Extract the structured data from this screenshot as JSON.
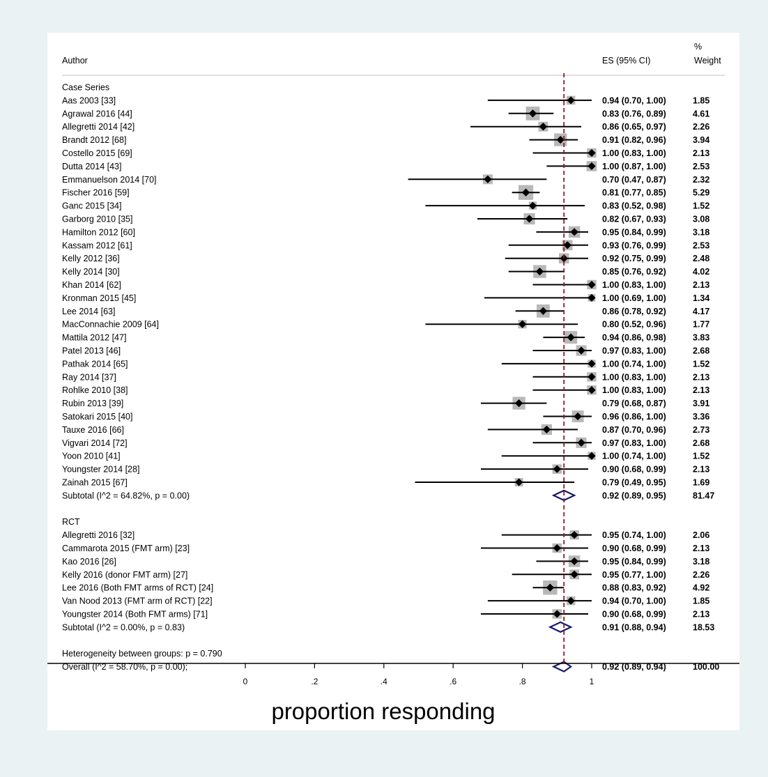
{
  "chart_data": {
    "type": "forest",
    "title": "",
    "xlabel": "proportion responding",
    "xlim": [
      0,
      1
    ],
    "x_ticks": [
      "0",
      ".2",
      ".4",
      ".6",
      ".8",
      "1"
    ],
    "x_tick_values": [
      0,
      0.2,
      0.4,
      0.6,
      0.8,
      1
    ],
    "overall_line": 0.92,
    "columns": {
      "author": "Author",
      "es": "ES (95% CI)",
      "weight_line1": "%",
      "weight_line2": "Weight"
    },
    "groups": [
      {
        "name": "Case Series",
        "studies": [
          {
            "label": "Aas 2003 [33]",
            "es": 0.94,
            "lo": 0.7,
            "hi": 1.0,
            "es_text": "0.94 (0.70, 1.00)",
            "weight": "1.85"
          },
          {
            "label": "Agrawal 2016 [44]",
            "es": 0.83,
            "lo": 0.76,
            "hi": 0.89,
            "es_text": "0.83 (0.76, 0.89)",
            "weight": "4.61"
          },
          {
            "label": "Allegretti 2014 [42]",
            "es": 0.86,
            "lo": 0.65,
            "hi": 0.97,
            "es_text": "0.86 (0.65, 0.97)",
            "weight": "2.26"
          },
          {
            "label": "Brandt 2012 [68]",
            "es": 0.91,
            "lo": 0.82,
            "hi": 0.96,
            "es_text": "0.91 (0.82, 0.96)",
            "weight": "3.94"
          },
          {
            "label": "Costello 2015 [69]",
            "es": 1.0,
            "lo": 0.83,
            "hi": 1.0,
            "es_text": "1.00 (0.83, 1.00)",
            "weight": "2.13"
          },
          {
            "label": "Dutta 2014 [43]",
            "es": 1.0,
            "lo": 0.87,
            "hi": 1.0,
            "es_text": "1.00 (0.87, 1.00)",
            "weight": "2.53"
          },
          {
            "label": "Emmanuelson 2014 [70]",
            "es": 0.7,
            "lo": 0.47,
            "hi": 0.87,
            "es_text": "0.70 (0.47, 0.87)",
            "weight": "2.32"
          },
          {
            "label": "Fischer 2016 [59]",
            "es": 0.81,
            "lo": 0.77,
            "hi": 0.85,
            "es_text": "0.81 (0.77, 0.85)",
            "weight": "5.29"
          },
          {
            "label": "Ganc 2015 [34]",
            "es": 0.83,
            "lo": 0.52,
            "hi": 0.98,
            "es_text": "0.83 (0.52, 0.98)",
            "weight": "1.52"
          },
          {
            "label": "Garborg 2010 [35]",
            "es": 0.82,
            "lo": 0.67,
            "hi": 0.93,
            "es_text": "0.82 (0.67, 0.93)",
            "weight": "3.08"
          },
          {
            "label": "Hamilton 2012 [60]",
            "es": 0.95,
            "lo": 0.84,
            "hi": 0.99,
            "es_text": "0.95 (0.84, 0.99)",
            "weight": "3.18"
          },
          {
            "label": "Kassam 2012 [61]",
            "es": 0.93,
            "lo": 0.76,
            "hi": 0.99,
            "es_text": "0.93 (0.76, 0.99)",
            "weight": "2.53"
          },
          {
            "label": "Kelly 2012 [36]",
            "es": 0.92,
            "lo": 0.75,
            "hi": 0.99,
            "es_text": "0.92 (0.75, 0.99)",
            "weight": "2.48"
          },
          {
            "label": "Kelly 2014 [30]",
            "es": 0.85,
            "lo": 0.76,
            "hi": 0.92,
            "es_text": "0.85 (0.76, 0.92)",
            "weight": "4.02"
          },
          {
            "label": "Khan 2014 [62]",
            "es": 1.0,
            "lo": 0.83,
            "hi": 1.0,
            "es_text": "1.00 (0.83, 1.00)",
            "weight": "2.13"
          },
          {
            "label": "Kronman 2015 [45]",
            "es": 1.0,
            "lo": 0.69,
            "hi": 1.0,
            "es_text": "1.00 (0.69, 1.00)",
            "weight": "1.34"
          },
          {
            "label": "Lee 2014 [63]",
            "es": 0.86,
            "lo": 0.78,
            "hi": 0.92,
            "es_text": "0.86 (0.78, 0.92)",
            "weight": "4.17"
          },
          {
            "label": "MacConnachie 2009 [64]",
            "es": 0.8,
            "lo": 0.52,
            "hi": 0.96,
            "es_text": "0.80 (0.52, 0.96)",
            "weight": "1.77"
          },
          {
            "label": "Mattila 2012 [47]",
            "es": 0.94,
            "lo": 0.86,
            "hi": 0.98,
            "es_text": "0.94 (0.86, 0.98)",
            "weight": "3.83"
          },
          {
            "label": "Patel 2013 [46]",
            "es": 0.97,
            "lo": 0.83,
            "hi": 1.0,
            "es_text": "0.97 (0.83, 1.00)",
            "weight": "2.68"
          },
          {
            "label": "Pathak 2014 [65]",
            "es": 1.0,
            "lo": 0.74,
            "hi": 1.0,
            "es_text": "1.00 (0.74, 1.00)",
            "weight": "1.52"
          },
          {
            "label": "Ray 2014 [37]",
            "es": 1.0,
            "lo": 0.83,
            "hi": 1.0,
            "es_text": "1.00 (0.83, 1.00)",
            "weight": "2.13"
          },
          {
            "label": "Rohlke 2010 [38]",
            "es": 1.0,
            "lo": 0.83,
            "hi": 1.0,
            "es_text": "1.00 (0.83, 1.00)",
            "weight": "2.13"
          },
          {
            "label": "Rubin 2013 [39]",
            "es": 0.79,
            "lo": 0.68,
            "hi": 0.87,
            "es_text": "0.79 (0.68, 0.87)",
            "weight": "3.91"
          },
          {
            "label": "Satokari 2015 [40]",
            "es": 0.96,
            "lo": 0.86,
            "hi": 1.0,
            "es_text": "0.96 (0.86, 1.00)",
            "weight": "3.36"
          },
          {
            "label": "Tauxe 2016 [66]",
            "es": 0.87,
            "lo": 0.7,
            "hi": 0.96,
            "es_text": "0.87 (0.70, 0.96)",
            "weight": "2.73"
          },
          {
            "label": "Vigvari 2014 [72]",
            "es": 0.97,
            "lo": 0.83,
            "hi": 1.0,
            "es_text": "0.97 (0.83, 1.00)",
            "weight": "2.68"
          },
          {
            "label": "Yoon 2010 [41]",
            "es": 1.0,
            "lo": 0.74,
            "hi": 1.0,
            "es_text": "1.00 (0.74, 1.00)",
            "weight": "1.52"
          },
          {
            "label": "Youngster 2014 [28]",
            "es": 0.9,
            "lo": 0.68,
            "hi": 0.99,
            "es_text": "0.90 (0.68, 0.99)",
            "weight": "2.13"
          },
          {
            "label": "Zainah 2015 [67]",
            "es": 0.79,
            "lo": 0.49,
            "hi": 0.95,
            "es_text": "0.79 (0.49, 0.95)",
            "weight": "1.69"
          }
        ],
        "subtotal": {
          "label": "Subtotal  (I^2 = 64.82%, p = 0.00)",
          "es": 0.92,
          "lo": 0.89,
          "hi": 0.95,
          "es_text": "0.92 (0.89, 0.95)",
          "weight": "81.47"
        }
      },
      {
        "name": "RCT",
        "studies": [
          {
            "label": "Allegretti 2016 [32]",
            "es": 0.95,
            "lo": 0.74,
            "hi": 1.0,
            "es_text": "0.95 (0.74, 1.00)",
            "weight": "2.06"
          },
          {
            "label": "Cammarota 2015 (FMT arm) [23]",
            "es": 0.9,
            "lo": 0.68,
            "hi": 0.99,
            "es_text": "0.90 (0.68, 0.99)",
            "weight": "2.13"
          },
          {
            "label": "Kao 2016 [26]",
            "es": 0.95,
            "lo": 0.84,
            "hi": 0.99,
            "es_text": "0.95 (0.84, 0.99)",
            "weight": "3.18"
          },
          {
            "label": "Kelly 2016 (donor FMT arm) [27]",
            "es": 0.95,
            "lo": 0.77,
            "hi": 1.0,
            "es_text": "0.95 (0.77, 1.00)",
            "weight": "2.26"
          },
          {
            "label": "Lee 2016 (Both FMT arms of RCT) [24]",
            "es": 0.88,
            "lo": 0.83,
            "hi": 0.92,
            "es_text": "0.88 (0.83, 0.92)",
            "weight": "4.92"
          },
          {
            "label": "Van Nood 2013 (FMT arm of RCT) [22]",
            "es": 0.94,
            "lo": 0.7,
            "hi": 1.0,
            "es_text": "0.94 (0.70, 1.00)",
            "weight": "1.85"
          },
          {
            "label": "Youngster 2014 (Both FMT arms) [71]",
            "es": 0.9,
            "lo": 0.68,
            "hi": 0.99,
            "es_text": "0.90 (0.68, 0.99)",
            "weight": "2.13"
          }
        ],
        "subtotal": {
          "label": "Subtotal  (I^2 = 0.00%, p = 0.83)",
          "es": 0.91,
          "lo": 0.88,
          "hi": 0.94,
          "es_text": "0.91 (0.88, 0.94)",
          "weight": "18.53"
        }
      }
    ],
    "heterogeneity": "Heterogeneity between groups: p = 0.790",
    "overall": {
      "label": "Overall  (I^2 = 58.70%, p = 0.00);",
      "es": 0.92,
      "lo": 0.89,
      "hi": 0.94,
      "es_text": "0.92 (0.89, 0.94)",
      "weight": "100.00"
    },
    "colors": {
      "background": "#eaf2f3",
      "panel": "#ffffff",
      "box": "#b8b8b8",
      "ci_line": "#000000",
      "diamond": "#1a1a6e",
      "ref_line": "#8b1a1a",
      "rule": "#bdbdbd"
    }
  }
}
